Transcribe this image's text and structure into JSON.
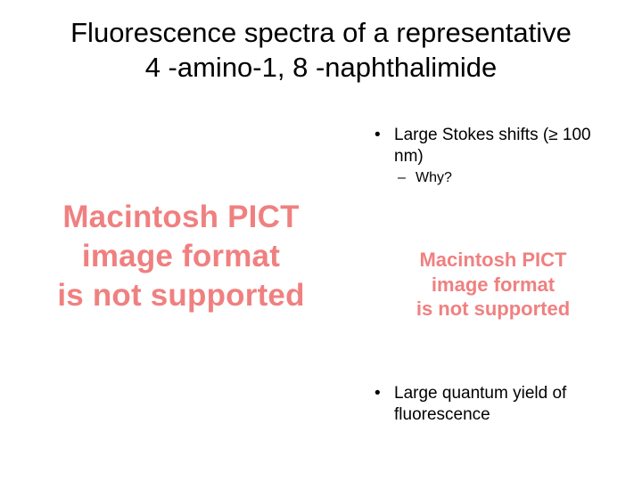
{
  "title": {
    "line1": "Fluorescence spectra of a representative",
    "line2": "4 -amino-1, 8 -naphthalimide"
  },
  "bullets_top": {
    "item1_line1": "Large Stokes shifts (≥ 100",
    "item1_line2": "nm)",
    "sub1": "Why?"
  },
  "bullets_bottom": {
    "item1_line1": "Large quantum yield of",
    "item1_line2": "fluorescence"
  },
  "pict_large": {
    "line1": "Macintosh PICT",
    "line2": "image format",
    "line3": "is not supported"
  },
  "pict_small": {
    "line1": "Macintosh PICT",
    "line2": "image format",
    "line3": "is not supported"
  },
  "colors": {
    "text": "#000000",
    "pict": "#f08080",
    "background": "#ffffff"
  }
}
